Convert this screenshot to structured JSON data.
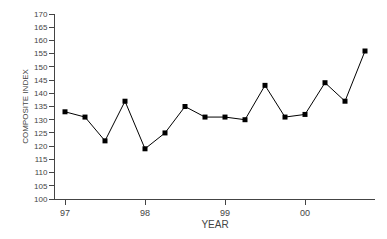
{
  "chart_data": {
    "type": "line",
    "categories": [
      "97",
      null,
      null,
      null,
      "98",
      null,
      null,
      null,
      "99",
      null,
      null,
      null,
      "00",
      null,
      null,
      null
    ],
    "values": [
      133,
      131,
      122,
      137,
      119,
      125,
      135,
      131,
      131,
      130,
      143,
      131,
      132,
      144,
      137,
      156
    ],
    "xlabel": "YEAR",
    "ylabel": "COMPOSITE INDEX",
    "ylim": [
      100,
      170
    ],
    "yticks": [
      100,
      105,
      110,
      115,
      120,
      125,
      130,
      135,
      140,
      145,
      150,
      155,
      160,
      165,
      170
    ],
    "color": "#000000",
    "marker": "square",
    "line_style": "solid",
    "grid": false
  }
}
